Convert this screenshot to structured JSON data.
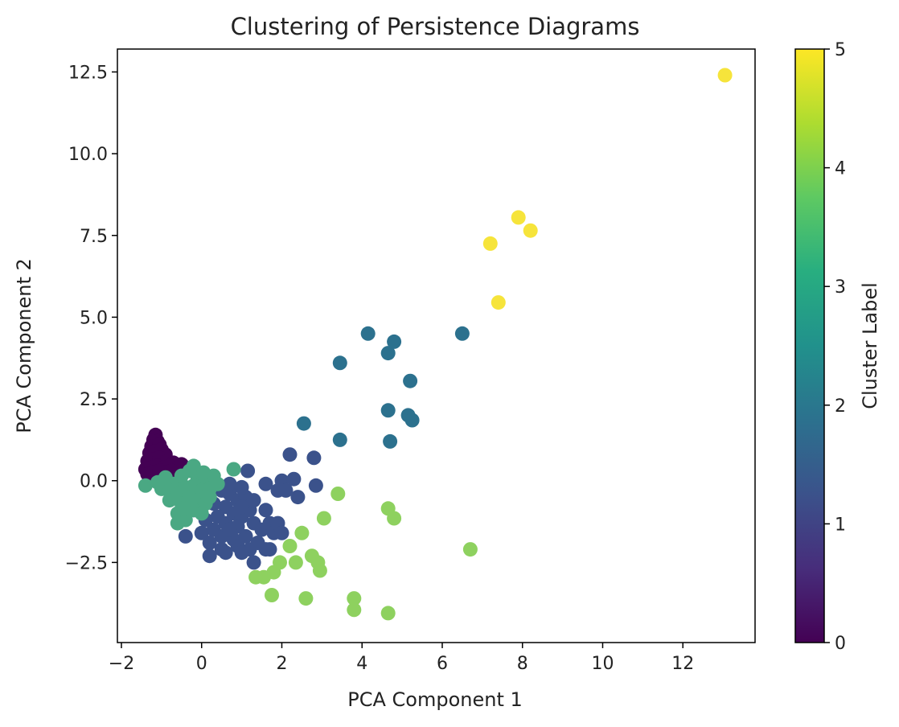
{
  "chart_data": {
    "type": "scatter",
    "title": "Clustering of Persistence Diagrams",
    "xlabel": "PCA Component 1",
    "ylabel": "PCA Component 2",
    "xlim": [
      -2.1,
      13.8
    ],
    "ylim": [
      -4.95,
      13.2
    ],
    "xticks": [
      -2,
      0,
      2,
      4,
      6,
      8,
      10,
      12
    ],
    "xtick_labels": [
      "−2",
      "0",
      "2",
      "4",
      "6",
      "8",
      "10",
      "12"
    ],
    "yticks": [
      -2.5,
      0,
      2.5,
      5,
      7.5,
      10,
      12.5
    ],
    "ytick_labels": [
      "−2.5",
      "0.0",
      "2.5",
      "5.0",
      "7.5",
      "10.0",
      "12.5"
    ],
    "grid": false,
    "colorbar": {
      "label": "Cluster Label",
      "colormap": "viridis",
      "range": [
        0,
        5
      ],
      "ticks": [
        0,
        1,
        2,
        3,
        4,
        5
      ],
      "tick_labels": [
        "0",
        "1",
        "2",
        "3",
        "4",
        "5"
      ]
    },
    "cluster_colors": {
      "0": "#440154",
      "1": "#3b528b",
      "2": "#2c718e",
      "3": "#4aa883",
      "4": "#8ed15f",
      "5": "#f6e43b"
    },
    "series": [
      {
        "cluster": 0,
        "points": [
          [
            -1.15,
            1.4
          ],
          [
            -1.2,
            1.25
          ],
          [
            -1.1,
            1.2
          ],
          [
            -1.25,
            1.05
          ],
          [
            -1.05,
            1.1
          ],
          [
            -1.3,
            0.85
          ],
          [
            -1.15,
            0.9
          ],
          [
            -1.0,
            0.95
          ],
          [
            -0.9,
            0.8
          ],
          [
            -1.35,
            0.6
          ],
          [
            -1.2,
            0.65
          ],
          [
            -1.05,
            0.7
          ],
          [
            -0.85,
            0.6
          ],
          [
            -0.7,
            0.55
          ],
          [
            -1.4,
            0.35
          ],
          [
            -1.25,
            0.4
          ],
          [
            -1.1,
            0.45
          ],
          [
            -0.95,
            0.4
          ],
          [
            -0.8,
            0.45
          ],
          [
            -0.6,
            0.4
          ],
          [
            -0.5,
            0.5
          ],
          [
            -1.35,
            0.2
          ],
          [
            -1.2,
            0.25
          ],
          [
            -1.05,
            0.3
          ],
          [
            -0.9,
            0.25
          ],
          [
            -0.75,
            0.3
          ],
          [
            -0.4,
            0.35
          ]
        ]
      },
      {
        "cluster": 1,
        "points": [
          [
            0.5,
            -0.3
          ],
          [
            0.7,
            -0.4
          ],
          [
            0.9,
            -0.6
          ],
          [
            1.1,
            -0.5
          ],
          [
            0.6,
            -0.8
          ],
          [
            0.8,
            -1.0
          ],
          [
            1.0,
            -1.1
          ],
          [
            1.2,
            -0.9
          ],
          [
            0.4,
            -1.1
          ],
          [
            0.6,
            -1.3
          ],
          [
            0.9,
            -1.4
          ],
          [
            1.3,
            -1.3
          ],
          [
            0.3,
            -1.5
          ],
          [
            0.5,
            -1.7
          ],
          [
            0.8,
            -1.8
          ],
          [
            1.1,
            -1.7
          ],
          [
            1.5,
            -1.5
          ],
          [
            0.2,
            -1.9
          ],
          [
            0.5,
            -2.1
          ],
          [
            0.9,
            -2.0
          ],
          [
            1.2,
            -2.1
          ],
          [
            0.0,
            -1.6
          ],
          [
            0.1,
            -1.2
          ],
          [
            0.3,
            -0.7
          ],
          [
            0.7,
            -0.1
          ],
          [
            1.0,
            -0.2
          ],
          [
            1.3,
            -0.6
          ],
          [
            1.6,
            -0.9
          ],
          [
            1.7,
            -1.3
          ],
          [
            1.8,
            -1.6
          ],
          [
            -0.2,
            -0.9
          ],
          [
            0.0,
            -0.5
          ],
          [
            -0.4,
            -1.7
          ],
          [
            0.6,
            -2.2
          ],
          [
            0.2,
            -2.3
          ],
          [
            1.0,
            -2.2
          ],
          [
            1.3,
            -2.5
          ],
          [
            1.6,
            -2.1
          ],
          [
            1.9,
            -1.3
          ],
          [
            2.0,
            -1.6
          ],
          [
            1.6,
            -0.1
          ],
          [
            1.9,
            -0.3
          ],
          [
            2.0,
            0.0
          ],
          [
            2.1,
            -0.3
          ],
          [
            2.2,
            0.8
          ],
          [
            2.3,
            0.05
          ],
          [
            2.4,
            -0.5
          ],
          [
            2.8,
            0.7
          ],
          [
            2.85,
            -0.15
          ],
          [
            1.15,
            0.3
          ],
          [
            1.7,
            -2.1
          ],
          [
            1.4,
            -1.9
          ],
          [
            0.7,
            -1.5
          ],
          [
            1.0,
            -0.8
          ]
        ]
      },
      {
        "cluster": 2,
        "points": [
          [
            2.55,
            1.75
          ],
          [
            3.45,
            1.25
          ],
          [
            3.45,
            3.6
          ],
          [
            4.15,
            4.5
          ],
          [
            4.65,
            3.9
          ],
          [
            4.8,
            4.25
          ],
          [
            4.65,
            2.15
          ],
          [
            5.15,
            2.0
          ],
          [
            5.25,
            1.85
          ],
          [
            4.7,
            1.2
          ],
          [
            5.2,
            3.05
          ],
          [
            6.5,
            4.5
          ]
        ]
      },
      {
        "cluster": 3,
        "points": [
          [
            -1.4,
            -0.15
          ],
          [
            -1.1,
            -0.05
          ],
          [
            -0.9,
            0.1
          ],
          [
            -0.7,
            -0.1
          ],
          [
            -0.5,
            0.15
          ],
          [
            -0.3,
            0.3
          ],
          [
            -0.1,
            0.1
          ],
          [
            0.1,
            0.0
          ],
          [
            0.3,
            0.15
          ],
          [
            -1.0,
            -0.25
          ],
          [
            -0.8,
            -0.3
          ],
          [
            -0.6,
            -0.4
          ],
          [
            -0.4,
            -0.2
          ],
          [
            -0.2,
            -0.15
          ],
          [
            0.0,
            -0.3
          ],
          [
            0.2,
            -0.25
          ],
          [
            0.4,
            -0.1
          ],
          [
            -0.8,
            -0.6
          ],
          [
            -0.5,
            -0.7
          ],
          [
            -0.3,
            -0.5
          ],
          [
            -0.1,
            -0.6
          ],
          [
            0.1,
            -0.7
          ],
          [
            -0.6,
            -1.0
          ],
          [
            -0.4,
            -1.2
          ],
          [
            -0.2,
            -0.9
          ],
          [
            0.0,
            -1.0
          ],
          [
            -0.6,
            -1.3
          ],
          [
            0.2,
            -0.5
          ],
          [
            0.8,
            0.35
          ],
          [
            -0.2,
            0.45
          ],
          [
            -0.45,
            -0.85
          ],
          [
            0.05,
            0.25
          ]
        ]
      },
      {
        "cluster": 4,
        "points": [
          [
            3.4,
            -0.4
          ],
          [
            3.05,
            -1.15
          ],
          [
            2.5,
            -1.6
          ],
          [
            2.2,
            -2.0
          ],
          [
            2.35,
            -2.5
          ],
          [
            2.75,
            -2.3
          ],
          [
            2.9,
            -2.5
          ],
          [
            2.95,
            -2.75
          ],
          [
            1.95,
            -2.5
          ],
          [
            1.8,
            -2.8
          ],
          [
            1.55,
            -2.95
          ],
          [
            1.35,
            -2.95
          ],
          [
            1.75,
            -3.5
          ],
          [
            2.6,
            -3.6
          ],
          [
            3.8,
            -3.6
          ],
          [
            3.8,
            -3.95
          ],
          [
            4.65,
            -4.05
          ],
          [
            4.65,
            -0.85
          ],
          [
            4.8,
            -1.15
          ],
          [
            6.7,
            -2.1
          ]
        ]
      },
      {
        "cluster": 5,
        "points": [
          [
            13.05,
            12.4
          ],
          [
            7.9,
            8.05
          ],
          [
            8.2,
            7.65
          ],
          [
            7.2,
            7.25
          ],
          [
            7.4,
            5.45
          ]
        ]
      }
    ]
  }
}
